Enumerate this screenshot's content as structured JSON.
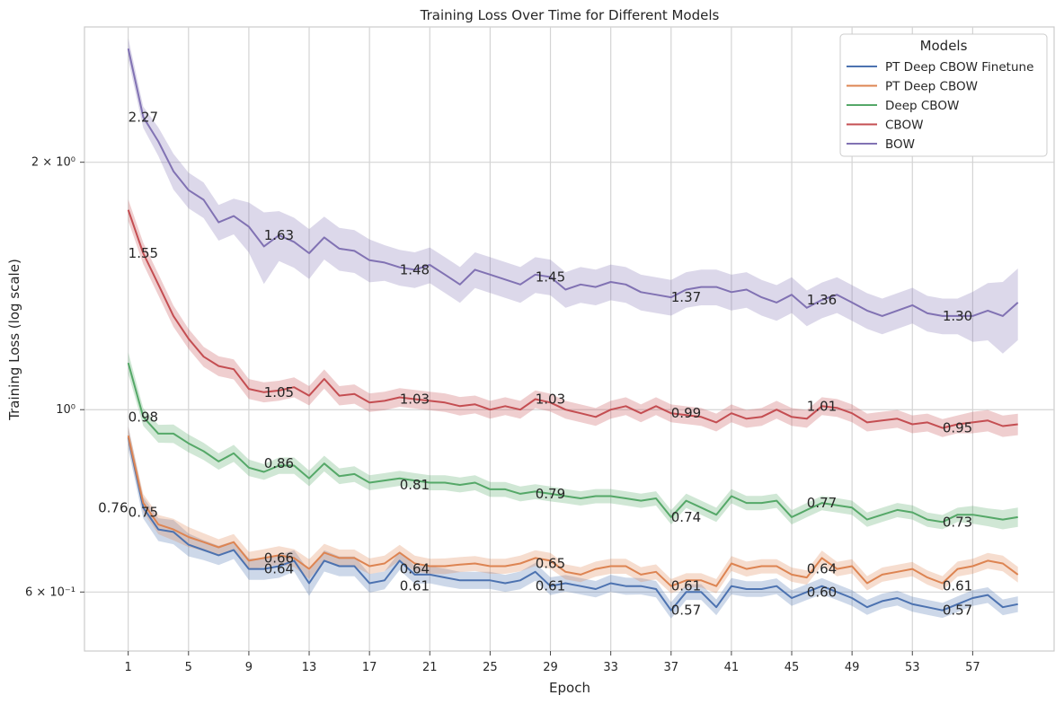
{
  "chart_data": {
    "type": "line",
    "title": "Training Loss Over Time for Different Models",
    "xlabel": "Epoch",
    "ylabel": "Training Loss (log scale)",
    "yscale": "log",
    "xlim": [
      -1.9,
      62.4
    ],
    "ylim": [
      0.5086,
      2.9216
    ],
    "xticks": [
      1,
      5,
      9,
      13,
      17,
      21,
      25,
      29,
      33,
      37,
      41,
      45,
      49,
      53,
      57
    ],
    "yticks": [
      {
        "value": 0.6,
        "label": "6 × 10⁻¹"
      },
      {
        "value": 1.0,
        "label": "10⁰"
      },
      {
        "value": 2.0,
        "label": "2 × 10⁰"
      }
    ],
    "grid": true,
    "legend": {
      "title": "Models",
      "position": "top-right"
    },
    "x": [
      1,
      2,
      3,
      4,
      5,
      6,
      7,
      8,
      9,
      10,
      11,
      12,
      13,
      14,
      15,
      16,
      17,
      18,
      19,
      20,
      21,
      22,
      23,
      24,
      25,
      26,
      27,
      28,
      29,
      30,
      31,
      32,
      33,
      34,
      35,
      36,
      37,
      38,
      39,
      40,
      41,
      42,
      43,
      44,
      45,
      46,
      47,
      48,
      49,
      50,
      51,
      52,
      53,
      54,
      55,
      56,
      57,
      58,
      59,
      60
    ],
    "series": [
      {
        "name": "PT Deep CBOW Finetune",
        "color": "#4c72b0",
        "values": [
          0.925,
          0.76,
          0.715,
          0.71,
          0.685,
          0.675,
          0.665,
          0.675,
          0.64,
          0.64,
          0.645,
          0.655,
          0.615,
          0.655,
          0.645,
          0.645,
          0.615,
          0.62,
          0.655,
          0.63,
          0.63,
          0.625,
          0.62,
          0.62,
          0.62,
          0.615,
          0.62,
          0.635,
          0.61,
          0.615,
          0.61,
          0.605,
          0.615,
          0.61,
          0.61,
          0.605,
          0.57,
          0.6,
          0.6,
          0.575,
          0.61,
          0.605,
          0.605,
          0.61,
          0.59,
          0.6,
          0.61,
          0.6,
          0.59,
          0.575,
          0.585,
          0.59,
          0.58,
          0.575,
          0.57,
          0.58,
          0.59,
          0.595,
          0.575,
          0.58
        ],
        "band": [
          0.032,
          0.03,
          0.032,
          0.034,
          0.032,
          0.028,
          0.027,
          0.025,
          0.03,
          0.03,
          0.032,
          0.03,
          0.035,
          0.03,
          0.028,
          0.028,
          0.026,
          0.025,
          0.026,
          0.025,
          0.024,
          0.025,
          0.024,
          0.024,
          0.024,
          0.024,
          0.025,
          0.025,
          0.025,
          0.023,
          0.023,
          0.023,
          0.024,
          0.024,
          0.023,
          0.023,
          0.023,
          0.022,
          0.022,
          0.022,
          0.023,
          0.022,
          0.022,
          0.022,
          0.022,
          0.022,
          0.023,
          0.022,
          0.022,
          0.021,
          0.021,
          0.021,
          0.021,
          0.021,
          0.021,
          0.022,
          0.022,
          0.022,
          0.022,
          0.022
        ]
      },
      {
        "name": "PT Deep CBOW",
        "color": "#dd8452",
        "values": [
          0.93,
          0.77,
          0.725,
          0.715,
          0.7,
          0.69,
          0.68,
          0.69,
          0.655,
          0.66,
          0.665,
          0.66,
          0.64,
          0.67,
          0.66,
          0.66,
          0.645,
          0.65,
          0.67,
          0.65,
          0.645,
          0.645,
          0.648,
          0.65,
          0.645,
          0.645,
          0.65,
          0.66,
          0.655,
          0.635,
          0.63,
          0.64,
          0.645,
          0.645,
          0.63,
          0.635,
          0.61,
          0.62,
          0.62,
          0.61,
          0.65,
          0.64,
          0.645,
          0.645,
          0.63,
          0.625,
          0.66,
          0.64,
          0.645,
          0.615,
          0.63,
          0.635,
          0.64,
          0.625,
          0.615,
          0.64,
          0.645,
          0.655,
          0.65,
          0.63
        ],
        "band": [
          0.025,
          0.025,
          0.027,
          0.03,
          0.028,
          0.025,
          0.023,
          0.023,
          0.025,
          0.025,
          0.026,
          0.025,
          0.028,
          0.025,
          0.024,
          0.024,
          0.022,
          0.022,
          0.022,
          0.022,
          0.021,
          0.022,
          0.021,
          0.021,
          0.021,
          0.021,
          0.022,
          0.022,
          0.022,
          0.021,
          0.021,
          0.021,
          0.021,
          0.021,
          0.021,
          0.021,
          0.02,
          0.02,
          0.02,
          0.02,
          0.021,
          0.021,
          0.02,
          0.02,
          0.02,
          0.02,
          0.021,
          0.02,
          0.02,
          0.02,
          0.02,
          0.02,
          0.02,
          0.02,
          0.02,
          0.021,
          0.021,
          0.022,
          0.022,
          0.022
        ]
      },
      {
        "name": "Deep CBOW",
        "color": "#55a868",
        "values": [
          1.14,
          0.98,
          0.935,
          0.935,
          0.91,
          0.89,
          0.865,
          0.885,
          0.85,
          0.84,
          0.855,
          0.855,
          0.825,
          0.86,
          0.83,
          0.835,
          0.815,
          0.82,
          0.825,
          0.82,
          0.815,
          0.815,
          0.81,
          0.815,
          0.8,
          0.8,
          0.79,
          0.795,
          0.79,
          0.785,
          0.78,
          0.785,
          0.785,
          0.78,
          0.775,
          0.78,
          0.74,
          0.775,
          0.76,
          0.745,
          0.785,
          0.77,
          0.77,
          0.775,
          0.74,
          0.755,
          0.77,
          0.765,
          0.76,
          0.735,
          0.745,
          0.755,
          0.75,
          0.735,
          0.73,
          0.745,
          0.745,
          0.74,
          0.735,
          0.74
        ],
        "band": [
          0.03,
          0.025,
          0.025,
          0.026,
          0.025,
          0.024,
          0.023,
          0.024,
          0.023,
          0.022,
          0.023,
          0.023,
          0.022,
          0.022,
          0.022,
          0.022,
          0.021,
          0.021,
          0.021,
          0.021,
          0.021,
          0.021,
          0.021,
          0.021,
          0.021,
          0.021,
          0.021,
          0.021,
          0.021,
          0.02,
          0.02,
          0.02,
          0.02,
          0.02,
          0.02,
          0.02,
          0.02,
          0.02,
          0.02,
          0.02,
          0.02,
          0.02,
          0.02,
          0.02,
          0.02,
          0.02,
          0.02,
          0.02,
          0.02,
          0.02,
          0.02,
          0.02,
          0.02,
          0.02,
          0.02,
          0.02,
          0.025,
          0.025,
          0.027,
          0.027
        ]
      },
      {
        "name": "CBOW",
        "color": "#c44e52",
        "values": [
          1.75,
          1.55,
          1.42,
          1.3,
          1.22,
          1.16,
          1.13,
          1.12,
          1.06,
          1.05,
          1.055,
          1.065,
          1.04,
          1.09,
          1.04,
          1.045,
          1.02,
          1.025,
          1.035,
          1.03,
          1.025,
          1.02,
          1.01,
          1.015,
          1.0,
          1.01,
          1.0,
          1.03,
          1.02,
          1.0,
          0.99,
          0.98,
          1.0,
          1.01,
          0.99,
          1.01,
          0.99,
          0.985,
          0.98,
          0.965,
          0.99,
          0.975,
          0.98,
          1.0,
          0.98,
          0.975,
          1.01,
          1.005,
          0.99,
          0.965,
          0.97,
          0.975,
          0.96,
          0.965,
          0.95,
          0.96,
          0.965,
          0.97,
          0.955,
          0.96
        ],
        "band": [
          0.03,
          0.03,
          0.03,
          0.03,
          0.028,
          0.028,
          0.028,
          0.028,
          0.028,
          0.028,
          0.028,
          0.028,
          0.027,
          0.027,
          0.027,
          0.027,
          0.026,
          0.026,
          0.026,
          0.026,
          0.026,
          0.026,
          0.026,
          0.025,
          0.025,
          0.025,
          0.025,
          0.025,
          0.025,
          0.025,
          0.025,
          0.025,
          0.025,
          0.025,
          0.025,
          0.025,
          0.025,
          0.025,
          0.025,
          0.025,
          0.025,
          0.025,
          0.025,
          0.025,
          0.025,
          0.025,
          0.025,
          0.025,
          0.025,
          0.025,
          0.025,
          0.025,
          0.025,
          0.025,
          0.025,
          0.025,
          0.03,
          0.03,
          0.03,
          0.03
        ]
      },
      {
        "name": "BOW",
        "color": "#8172b3",
        "values": [
          2.75,
          2.27,
          2.12,
          1.95,
          1.85,
          1.8,
          1.69,
          1.72,
          1.67,
          1.58,
          1.63,
          1.6,
          1.55,
          1.62,
          1.57,
          1.56,
          1.52,
          1.51,
          1.49,
          1.48,
          1.5,
          1.46,
          1.42,
          1.48,
          1.46,
          1.44,
          1.42,
          1.46,
          1.45,
          1.4,
          1.42,
          1.41,
          1.43,
          1.42,
          1.39,
          1.38,
          1.37,
          1.4,
          1.41,
          1.41,
          1.39,
          1.4,
          1.37,
          1.35,
          1.38,
          1.33,
          1.36,
          1.38,
          1.35,
          1.32,
          1.3,
          1.32,
          1.34,
          1.31,
          1.3,
          1.3,
          1.3,
          1.32,
          1.3,
          1.35
        ],
        "band": [
          0.03,
          0.03,
          0.04,
          0.05,
          0.05,
          0.05,
          0.05,
          0.05,
          0.07,
          0.1,
          0.07,
          0.07,
          0.07,
          0.06,
          0.06,
          0.06,
          0.06,
          0.05,
          0.05,
          0.05,
          0.05,
          0.05,
          0.05,
          0.05,
          0.05,
          0.05,
          0.05,
          0.05,
          0.05,
          0.05,
          0.05,
          0.05,
          0.05,
          0.05,
          0.05,
          0.05,
          0.05,
          0.05,
          0.05,
          0.05,
          0.05,
          0.05,
          0.05,
          0.05,
          0.05,
          0.05,
          0.05,
          0.05,
          0.05,
          0.05,
          0.05,
          0.05,
          0.05,
          0.05,
          0.05,
          0.05,
          0.07,
          0.08,
          0.1,
          0.1
        ]
      }
    ],
    "annotations": [
      {
        "x": 1,
        "y": 2.27,
        "text": "2.27"
      },
      {
        "x": 10,
        "y": 1.63,
        "text": "1.63"
      },
      {
        "x": 19,
        "y": 1.48,
        "text": "1.48"
      },
      {
        "x": 28,
        "y": 1.45,
        "text": "1.45"
      },
      {
        "x": 37,
        "y": 1.37,
        "text": "1.37"
      },
      {
        "x": 46,
        "y": 1.36,
        "text": "1.36"
      },
      {
        "x": 55,
        "y": 1.3,
        "text": "1.30"
      },
      {
        "x": 1,
        "y": 1.55,
        "text": "1.55"
      },
      {
        "x": 10,
        "y": 1.05,
        "text": "1.05"
      },
      {
        "x": 19,
        "y": 1.03,
        "text": "1.03"
      },
      {
        "x": 28,
        "y": 1.03,
        "text": "1.03"
      },
      {
        "x": 37,
        "y": 0.99,
        "text": "0.99"
      },
      {
        "x": 46,
        "y": 1.01,
        "text": "1.01"
      },
      {
        "x": 55,
        "y": 0.95,
        "text": "0.95"
      },
      {
        "x": 1,
        "y": 0.98,
        "text": "0.98"
      },
      {
        "x": 10,
        "y": 0.86,
        "text": "0.86"
      },
      {
        "x": 19,
        "y": 0.81,
        "text": "0.81"
      },
      {
        "x": 28,
        "y": 0.79,
        "text": "0.79"
      },
      {
        "x": 37,
        "y": 0.74,
        "text": "0.74"
      },
      {
        "x": 46,
        "y": 0.77,
        "text": "0.77"
      },
      {
        "x": 55,
        "y": 0.73,
        "text": "0.73"
      },
      {
        "x": -1,
        "y": 0.76,
        "text": "0.76"
      },
      {
        "x": 1,
        "y": 0.75,
        "text": "0.75"
      },
      {
        "x": 10,
        "y": 0.66,
        "text": "0.66"
      },
      {
        "x": 19,
        "y": 0.64,
        "text": "0.64"
      },
      {
        "x": 28,
        "y": 0.65,
        "text": "0.65"
      },
      {
        "x": 37,
        "y": 0.61,
        "text": "0.61"
      },
      {
        "x": 46,
        "y": 0.64,
        "text": "0.64"
      },
      {
        "x": 55,
        "y": 0.61,
        "text": "0.61"
      },
      {
        "x": 10,
        "y": 0.64,
        "text": "0.64"
      },
      {
        "x": 19,
        "y": 0.61,
        "text": "0.61"
      },
      {
        "x": 28,
        "y": 0.61,
        "text": "0.61"
      },
      {
        "x": 37,
        "y": 0.57,
        "text": "0.57"
      },
      {
        "x": 46,
        "y": 0.6,
        "text": "0.60"
      },
      {
        "x": 55,
        "y": 0.57,
        "text": "0.57"
      }
    ]
  }
}
